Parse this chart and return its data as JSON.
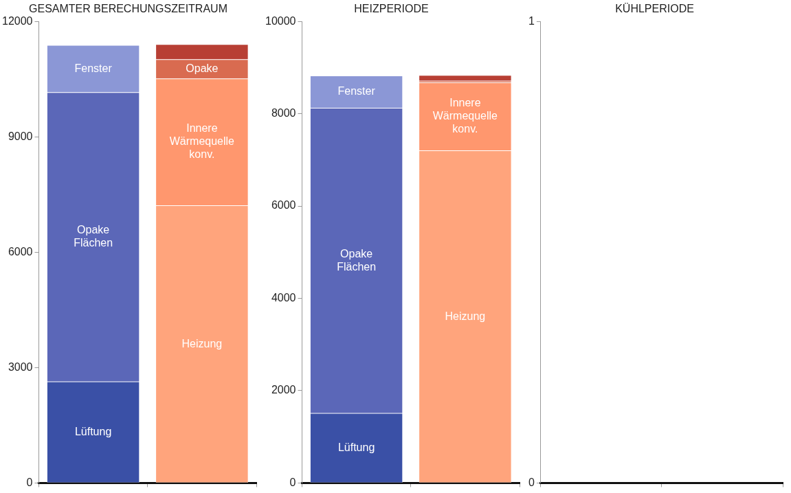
{
  "chart_data": [
    {
      "type": "bar",
      "title": "GESAMTER BERECHUNGSZEITRAUM",
      "categories": [
        null,
        null
      ],
      "stacked": true,
      "ylim": [
        0,
        12000
      ],
      "yticks": [
        0,
        3000,
        6000,
        9000,
        12000
      ],
      "grid": false,
      "legend": false,
      "tick_labels": "y",
      "series": [
        {
          "name": "Lüftung",
          "color": "#3a50a6",
          "values": [
            2630,
            null
          ]
        },
        {
          "name": "Opake Flächen",
          "color": "#5b67b8",
          "values": [
            7520,
            null
          ]
        },
        {
          "name": "Fenster",
          "color": "#8b97d6",
          "values": [
            1230,
            null
          ]
        },
        {
          "name": "Heizung",
          "color": "#ffa47c",
          "values": [
            null,
            7210
          ]
        },
        {
          "name": "Innere Wärmequelle konv.",
          "color": "#ff976e",
          "values": [
            null,
            3300
          ]
        },
        {
          "name": "Opake",
          "color": "#d96b50",
          "values": [
            null,
            500
          ]
        },
        {
          "color": "#b83f34",
          "values": [
            null,
            390
          ]
        }
      ]
    },
    {
      "type": "bar",
      "title": "HEIZPERIODE",
      "categories": [
        null,
        null
      ],
      "stacked": true,
      "ylim": [
        0,
        10000
      ],
      "yticks": [
        0,
        2000,
        4000,
        6000,
        8000,
        10000
      ],
      "grid": false,
      "legend": false,
      "tick_labels": "y",
      "series": [
        {
          "name": "Lüftung",
          "color": "#3a50a6",
          "values": [
            1510,
            null
          ]
        },
        {
          "name": "Opake Flächen",
          "color": "#5b67b8",
          "values": [
            6610,
            null
          ]
        },
        {
          "name": "Fenster",
          "color": "#8b97d6",
          "values": [
            700,
            null
          ]
        },
        {
          "name": "Heizung",
          "color": "#ffa47c",
          "values": [
            null,
            7200
          ]
        },
        {
          "name": "Innere Wärmequelle konv.",
          "color": "#ff976e",
          "values": [
            null,
            1470
          ]
        },
        {
          "color": "#d96b50",
          "values": [
            null,
            40
          ]
        },
        {
          "color": "#b83f34",
          "values": [
            null,
            120
          ]
        }
      ]
    },
    {
      "type": "bar",
      "title": "KÜHLPERIODE",
      "categories": [
        null,
        null
      ],
      "stacked": true,
      "ylim": [
        0,
        1
      ],
      "yticks": [
        0,
        1
      ],
      "grid": false,
      "legend": false,
      "tick_labels": "y"
    }
  ]
}
